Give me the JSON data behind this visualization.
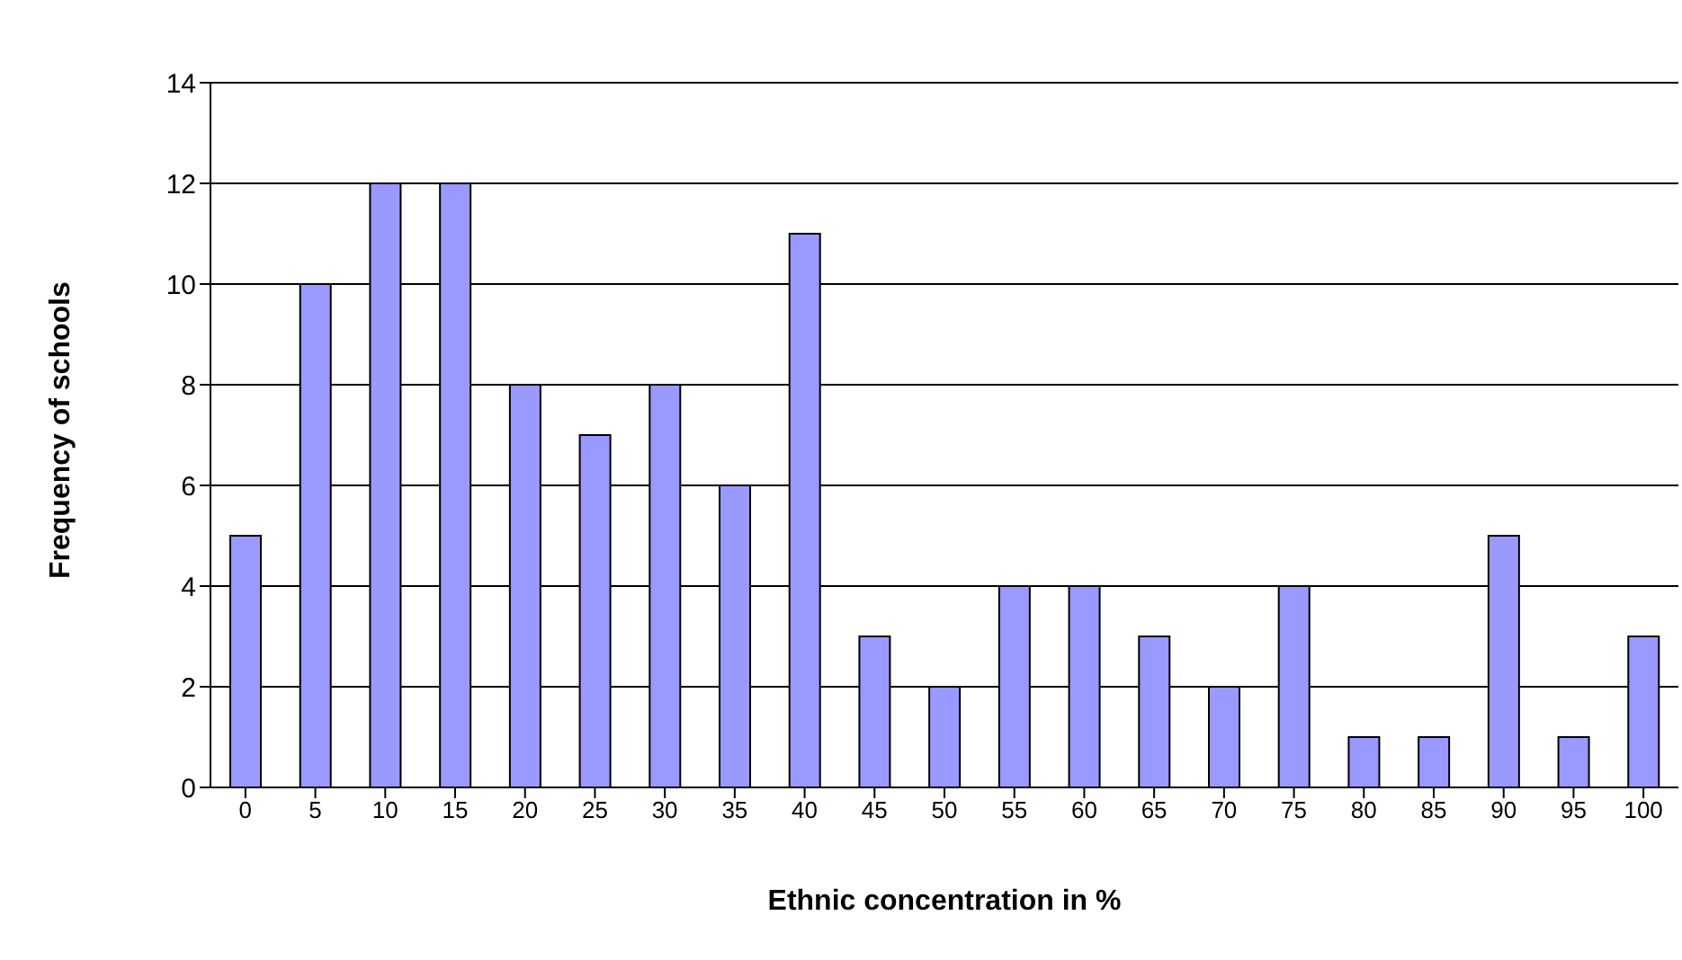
{
  "chart_data": {
    "type": "bar",
    "xlabel": "Ethnic concentration in %",
    "ylabel": "Frequency of schools",
    "categories": [
      "0",
      "5",
      "10",
      "15",
      "20",
      "25",
      "30",
      "35",
      "40",
      "45",
      "50",
      "55",
      "60",
      "65",
      "70",
      "75",
      "80",
      "85",
      "90",
      "95",
      "100"
    ],
    "values": [
      5,
      10,
      12,
      12,
      8,
      7,
      8,
      6,
      11,
      3,
      2,
      4,
      4,
      3,
      2,
      4,
      1,
      1,
      5,
      1,
      3
    ],
    "color": "#9999ff",
    "ylim": [
      0,
      14
    ],
    "yticks": [
      0,
      2,
      4,
      6,
      8,
      10,
      12,
      14
    ],
    "grid": "y"
  }
}
